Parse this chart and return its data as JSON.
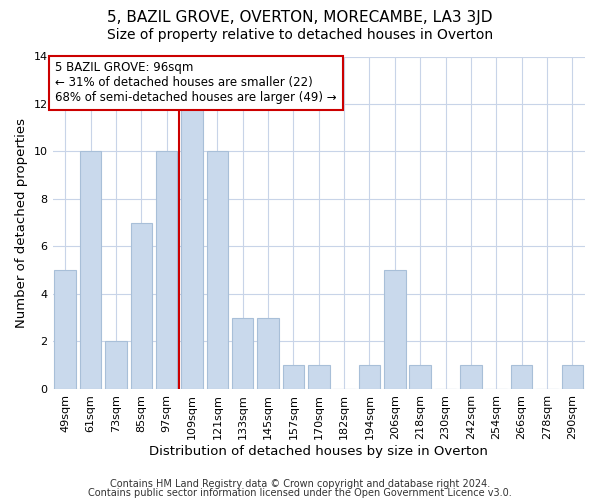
{
  "title": "5, BAZIL GROVE, OVERTON, MORECAMBE, LA3 3JD",
  "subtitle": "Size of property relative to detached houses in Overton",
  "xlabel": "Distribution of detached houses by size in Overton",
  "ylabel": "Number of detached properties",
  "bar_labels": [
    "49sqm",
    "61sqm",
    "73sqm",
    "85sqm",
    "97sqm",
    "109sqm",
    "121sqm",
    "133sqm",
    "145sqm",
    "157sqm",
    "170sqm",
    "182sqm",
    "194sqm",
    "206sqm",
    "218sqm",
    "230sqm",
    "242sqm",
    "254sqm",
    "266sqm",
    "278sqm",
    "290sqm"
  ],
  "bar_values": [
    5,
    10,
    2,
    7,
    10,
    12,
    10,
    3,
    3,
    1,
    1,
    0,
    1,
    5,
    1,
    0,
    1,
    0,
    1,
    0,
    1
  ],
  "bar_color": "#c9d9ec",
  "bar_edgecolor": "#a8bfd8",
  "grid_color": "#c8d4e8",
  "annotation_text_line1": "5 BAZIL GROVE: 96sqm",
  "annotation_text_line2": "← 31% of detached houses are smaller (22)",
  "annotation_text_line3": "68% of semi-detached houses are larger (49) →",
  "annotation_box_facecolor": "#ffffff",
  "annotation_box_edgecolor": "#cc0000",
  "vline_color": "#cc0000",
  "vline_x": 4.5,
  "ylim": [
    0,
    14
  ],
  "yticks": [
    0,
    2,
    4,
    6,
    8,
    10,
    12,
    14
  ],
  "footer_line1": "Contains HM Land Registry data © Crown copyright and database right 2024.",
  "footer_line2": "Contains public sector information licensed under the Open Government Licence v3.0.",
  "bg_color": "#ffffff",
  "plot_bg_color": "#ffffff",
  "title_fontsize": 11,
  "subtitle_fontsize": 10,
  "axis_label_fontsize": 9.5,
  "tick_fontsize": 8,
  "annot_fontsize": 8.5,
  "footer_fontsize": 7
}
